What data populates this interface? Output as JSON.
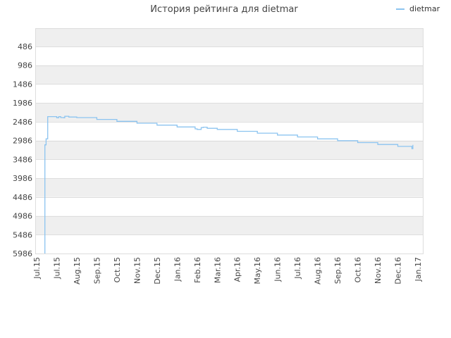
{
  "chart_data": {
    "type": "line",
    "title": "История рейтинга для dietmar",
    "y_reversed": true,
    "ylim": [
      5986,
      0
    ],
    "y_ticks": [
      "486",
      "986",
      "1486",
      "1986",
      "2486",
      "2986",
      "3486",
      "3986",
      "4486",
      "4986",
      "5486",
      "5986"
    ],
    "x_ticks": [
      "Jul.15",
      "Jul.15",
      "Aug.15",
      "Sep.15",
      "Oct.15",
      "Nov.15",
      "Dec.15",
      "Jan.16",
      "Feb.16",
      "Mar.16",
      "Apr.16",
      "May.16",
      "Jun.16",
      "Jul.16",
      "Aug.16",
      "Sep.16",
      "Oct.16",
      "Nov.16",
      "Dec.16",
      "Jan.17"
    ],
    "grid": true,
    "legend": "top-right",
    "series": [
      {
        "name": "dietmar",
        "color": "#8cc4f0",
        "points": [
          [
            0.41,
            5986
          ],
          [
            0.41,
            3100
          ],
          [
            0.47,
            2940
          ],
          [
            0.55,
            2920
          ],
          [
            0.55,
            2350
          ],
          [
            0.9,
            2350
          ],
          [
            1.0,
            2380
          ],
          [
            1.1,
            2350
          ],
          [
            1.2,
            2375
          ],
          [
            1.35,
            2380
          ],
          [
            1.4,
            2340
          ],
          [
            1.55,
            2340
          ],
          [
            1.6,
            2360
          ],
          [
            2.0,
            2375
          ],
          [
            3.0,
            2425
          ],
          [
            4.0,
            2475
          ],
          [
            5.0,
            2525
          ],
          [
            6.0,
            2575
          ],
          [
            7.0,
            2625
          ],
          [
            7.9,
            2675
          ],
          [
            8.0,
            2690
          ],
          [
            8.2,
            2640
          ],
          [
            8.3,
            2630
          ],
          [
            8.5,
            2660
          ],
          [
            9.0,
            2690
          ],
          [
            10.0,
            2740
          ],
          [
            11.0,
            2790
          ],
          [
            12.0,
            2840
          ],
          [
            13.0,
            2890
          ],
          [
            14.0,
            2940
          ],
          [
            15.0,
            2990
          ],
          [
            16.0,
            3040
          ],
          [
            17.0,
            3090
          ],
          [
            18.0,
            3140
          ],
          [
            18.7,
            3170
          ],
          [
            18.7,
            3200
          ],
          [
            18.75,
            3100
          ]
        ]
      }
    ]
  }
}
